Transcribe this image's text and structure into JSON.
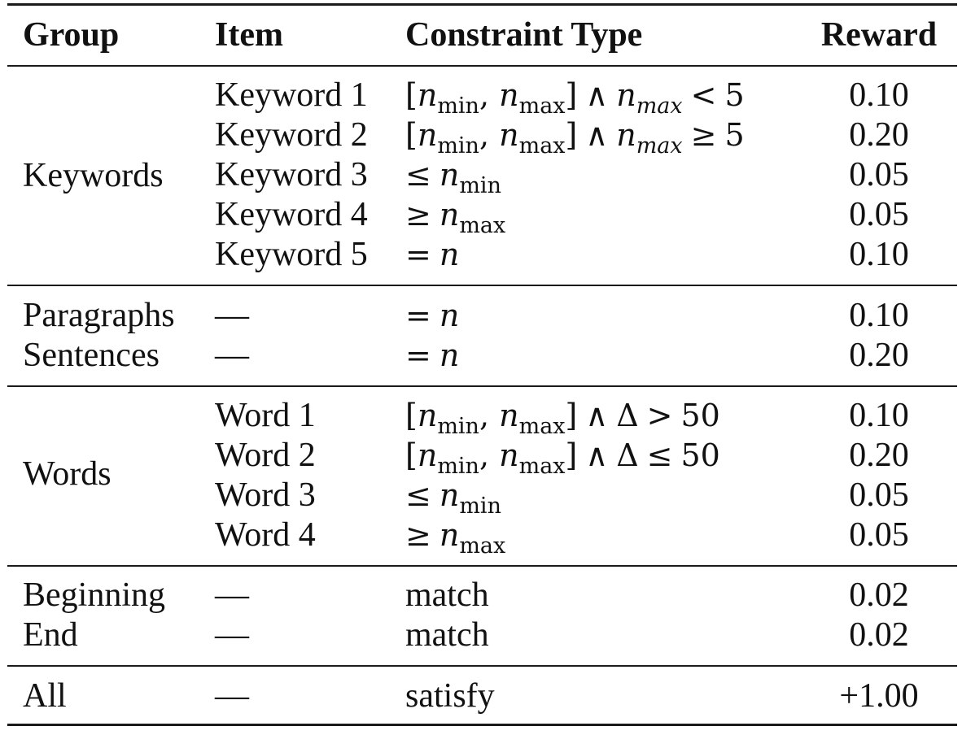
{
  "headers": {
    "group": "Group",
    "item": "Item",
    "constraint": "Constraint Type",
    "reward": "Reward"
  },
  "sections": [
    {
      "group": "Keywords",
      "rows": [
        {
          "item": "Keyword 1",
          "constraint": "[n_min, n_max] ∧ n_max < 5",
          "reward": "0.10"
        },
        {
          "item": "Keyword 2",
          "constraint": "[n_min, n_max] ∧ n_max ≥ 5",
          "reward": "0.20"
        },
        {
          "item": "Keyword 3",
          "constraint": "≤ n_min",
          "reward": "0.05"
        },
        {
          "item": "Keyword 4",
          "constraint": "≥ n_max",
          "reward": "0.05"
        },
        {
          "item": "Keyword 5",
          "constraint": "= n",
          "reward": "0.10"
        }
      ]
    },
    {
      "rows": [
        {
          "group": "Paragraphs",
          "item": "—",
          "constraint": "= n",
          "reward": "0.10"
        },
        {
          "group": "Sentences",
          "item": "—",
          "constraint": "= n",
          "reward": "0.20"
        }
      ]
    },
    {
      "group": "Words",
      "rows": [
        {
          "item": "Word 1",
          "constraint": "[n_min, n_max] ∧ Δ > 50",
          "reward": "0.10"
        },
        {
          "item": "Word 2",
          "constraint": "[n_min, n_max] ∧ Δ ≤ 50",
          "reward": "0.20"
        },
        {
          "item": "Word 3",
          "constraint": "≤ n_min",
          "reward": "0.05"
        },
        {
          "item": "Word 4",
          "constraint": "≥ n_max",
          "reward": "0.05"
        }
      ]
    },
    {
      "rows": [
        {
          "group": "Beginning",
          "item": "—",
          "constraint": "match",
          "reward": "0.02"
        },
        {
          "group": "End",
          "item": "—",
          "constraint": "match",
          "reward": "0.02"
        }
      ]
    },
    {
      "rows": [
        {
          "group": "All",
          "item": "—",
          "constraint": "satisfy",
          "reward": "+1.00"
        }
      ]
    }
  ]
}
